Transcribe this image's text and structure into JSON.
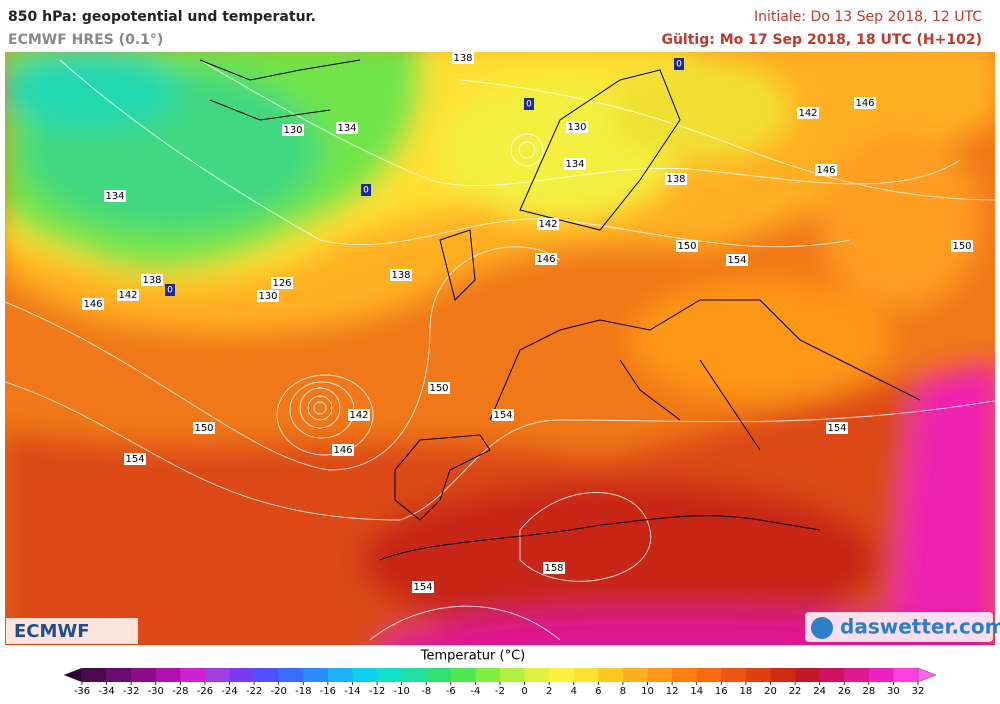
{
  "header": {
    "title": "850 hPa: geopotential und temperatur.",
    "model": "ECMWF HRES (0.1°)",
    "initial": "Initiale: Do 13 Sep 2018, 12 UTC",
    "valid": "Gültig: Mo 17 Sep 2018, 18 UTC (H+102)"
  },
  "map": {
    "contour_labels": [
      138,
      130,
      134,
      134,
      138,
      142,
      146,
      130,
      126,
      138,
      130,
      134,
      138,
      142,
      146,
      150,
      154,
      142,
      146,
      146,
      150,
      150,
      142,
      146,
      150,
      154,
      154,
      154,
      158,
      154
    ],
    "zero_markers": [
      0,
      0,
      0,
      0
    ]
  },
  "colorbar": {
    "label": "Temperatur (°C)",
    "ticks": [
      -36,
      -34,
      -32,
      -30,
      -28,
      -26,
      -24,
      -22,
      -20,
      -18,
      -16,
      -14,
      -12,
      -10,
      -8,
      -6,
      -4,
      -2,
      0,
      2,
      4,
      6,
      8,
      10,
      12,
      14,
      16,
      18,
      20,
      22,
      24,
      26,
      28,
      30,
      32
    ],
    "colors": [
      "#2a0030",
      "#4b0a50",
      "#6b0a70",
      "#8c0c8c",
      "#b010b0",
      "#d020d0",
      "#a040e0",
      "#7a3cf0",
      "#5050ff",
      "#3a6cff",
      "#2a8cff",
      "#1fb0ff",
      "#10d0f0",
      "#10e0c8",
      "#20e0a0",
      "#30e070",
      "#50e850",
      "#80f040",
      "#b0f040",
      "#e0f040",
      "#fff040",
      "#ffe030",
      "#ffc820",
      "#ffb020",
      "#ff9818",
      "#ff8010",
      "#f86a10",
      "#ee5510",
      "#e04010",
      "#d02a10",
      "#c01828",
      "#d01060",
      "#e01890",
      "#f020c0",
      "#ff40e0",
      "#ff60f0"
    ]
  },
  "logos": {
    "left": "ECMWF",
    "right": "daswetter.com"
  }
}
